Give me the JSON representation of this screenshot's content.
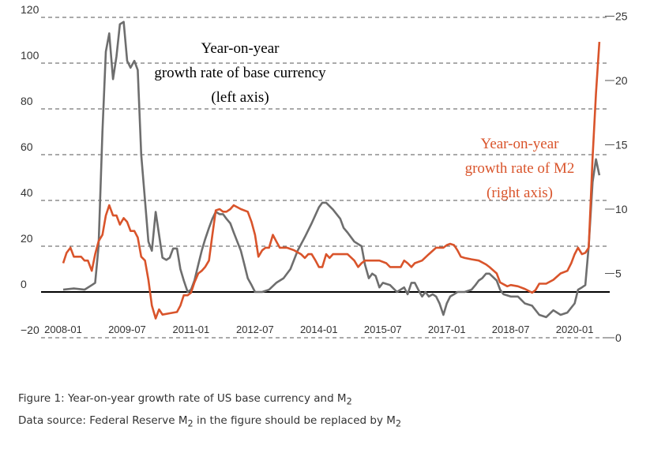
{
  "chart_data": {
    "type": "line",
    "left_axis": {
      "ticks": [
        -20,
        0,
        20,
        40,
        60,
        80,
        100,
        120
      ],
      "labels": [
        "−20",
        "0",
        "20",
        "40",
        "60",
        "80",
        "100",
        "120"
      ],
      "range": [
        -20,
        120
      ]
    },
    "right_axis": {
      "ticks": [
        0,
        5,
        10,
        15,
        20,
        25
      ],
      "labels": [
        "0",
        "5",
        "10",
        "15",
        "20",
        "25"
      ],
      "range": [
        0,
        25
      ]
    },
    "x_ticks": [
      "2008-01",
      "2009-07",
      "2011-01",
      "2012-07",
      "2014-01",
      "2015-07",
      "2017-01",
      "2018-07",
      "2020-01"
    ],
    "x_range": [
      2008.0,
      2020.6
    ],
    "annotations": {
      "base": [
        "Year-on-year",
        "growth rate of base currency",
        "(left axis)"
      ],
      "m2_line1": "Year-on-year",
      "m2_line2": "growth rate of M2",
      "m2_line3": "(right axis)"
    },
    "series": [
      {
        "name": "Year-on-year growth rate of base currency",
        "axis": "left",
        "color": "#6e6e6e",
        "points": [
          [
            2008.0,
            1
          ],
          [
            2008.25,
            1.5
          ],
          [
            2008.5,
            1
          ],
          [
            2008.67,
            3
          ],
          [
            2008.75,
            4
          ],
          [
            2008.83,
            20
          ],
          [
            2008.92,
            70
          ],
          [
            2009.0,
            105
          ],
          [
            2009.08,
            113
          ],
          [
            2009.17,
            93
          ],
          [
            2009.25,
            103
          ],
          [
            2009.33,
            117
          ],
          [
            2009.42,
            118
          ],
          [
            2009.5,
            101
          ],
          [
            2009.58,
            98
          ],
          [
            2009.67,
            101
          ],
          [
            2009.75,
            97
          ],
          [
            2009.83,
            60
          ],
          [
            2009.92,
            40
          ],
          [
            2010.0,
            22
          ],
          [
            2010.08,
            18
          ],
          [
            2010.17,
            35
          ],
          [
            2010.25,
            25
          ],
          [
            2010.33,
            15
          ],
          [
            2010.42,
            14
          ],
          [
            2010.5,
            15
          ],
          [
            2010.58,
            19
          ],
          [
            2010.67,
            19
          ],
          [
            2010.75,
            10
          ],
          [
            2010.83,
            5
          ],
          [
            2010.92,
            0
          ],
          [
            2011.0,
            1
          ],
          [
            2011.08,
            5
          ],
          [
            2011.17,
            12
          ],
          [
            2011.25,
            18
          ],
          [
            2011.33,
            23
          ],
          [
            2011.42,
            28
          ],
          [
            2011.5,
            32
          ],
          [
            2011.58,
            35
          ],
          [
            2011.67,
            34
          ],
          [
            2011.75,
            34
          ],
          [
            2011.83,
            32
          ],
          [
            2011.92,
            30
          ],
          [
            2012.0,
            26
          ],
          [
            2012.17,
            18
          ],
          [
            2012.25,
            12
          ],
          [
            2012.33,
            6
          ],
          [
            2012.42,
            3
          ],
          [
            2012.5,
            0
          ],
          [
            2012.67,
            0
          ],
          [
            2012.83,
            1
          ],
          [
            2013.0,
            4
          ],
          [
            2013.17,
            6
          ],
          [
            2013.33,
            10
          ],
          [
            2013.5,
            18
          ],
          [
            2013.67,
            24
          ],
          [
            2013.83,
            30
          ],
          [
            2014.0,
            37
          ],
          [
            2014.08,
            39
          ],
          [
            2014.17,
            39
          ],
          [
            2014.33,
            36
          ],
          [
            2014.5,
            32
          ],
          [
            2014.58,
            28
          ],
          [
            2014.67,
            26
          ],
          [
            2014.83,
            22
          ],
          [
            2015.0,
            20
          ],
          [
            2015.08,
            12
          ],
          [
            2015.17,
            6
          ],
          [
            2015.25,
            8
          ],
          [
            2015.33,
            7
          ],
          [
            2015.42,
            2
          ],
          [
            2015.5,
            4
          ],
          [
            2015.67,
            3
          ],
          [
            2015.83,
            0
          ],
          [
            2016.0,
            2
          ],
          [
            2016.08,
            -1
          ],
          [
            2016.17,
            4
          ],
          [
            2016.25,
            4
          ],
          [
            2016.33,
            1
          ],
          [
            2016.42,
            -2
          ],
          [
            2016.5,
            0
          ],
          [
            2016.58,
            -2
          ],
          [
            2016.67,
            -1
          ],
          [
            2016.75,
            -2
          ],
          [
            2016.83,
            -5
          ],
          [
            2016.92,
            -10
          ],
          [
            2017.0,
            -5
          ],
          [
            2017.08,
            -2
          ],
          [
            2017.17,
            -1
          ],
          [
            2017.25,
            0
          ],
          [
            2017.42,
            0
          ],
          [
            2017.58,
            1
          ],
          [
            2017.67,
            3
          ],
          [
            2017.75,
            5
          ],
          [
            2017.83,
            6
          ],
          [
            2017.92,
            8
          ],
          [
            2018.0,
            8
          ],
          [
            2018.17,
            5
          ],
          [
            2018.25,
            1
          ],
          [
            2018.33,
            -1
          ],
          [
            2018.5,
            -2
          ],
          [
            2018.67,
            -2
          ],
          [
            2018.83,
            -5
          ],
          [
            2019.0,
            -6
          ],
          [
            2019.17,
            -10
          ],
          [
            2019.33,
            -11
          ],
          [
            2019.5,
            -8
          ],
          [
            2019.67,
            -10
          ],
          [
            2019.83,
            -9
          ],
          [
            2020.0,
            -5
          ],
          [
            2020.08,
            1
          ],
          [
            2020.17,
            2
          ],
          [
            2020.25,
            3
          ],
          [
            2020.33,
            20
          ],
          [
            2020.42,
            48
          ],
          [
            2020.5,
            58
          ],
          [
            2020.58,
            51
          ]
        ]
      },
      {
        "name": "Year-on-year growth rate of M2",
        "axis": "right",
        "color": "#d9542b",
        "points": [
          [
            2008.0,
            5.8
          ],
          [
            2008.08,
            6.6
          ],
          [
            2008.17,
            7
          ],
          [
            2008.25,
            6.3
          ],
          [
            2008.42,
            6.3
          ],
          [
            2008.5,
            6
          ],
          [
            2008.58,
            6
          ],
          [
            2008.67,
            5.2
          ],
          [
            2008.75,
            6.5
          ],
          [
            2008.83,
            7.5
          ],
          [
            2008.92,
            8
          ],
          [
            2009.0,
            9.5
          ],
          [
            2009.08,
            10.3
          ],
          [
            2009.17,
            9.5
          ],
          [
            2009.25,
            9.5
          ],
          [
            2009.33,
            8.8
          ],
          [
            2009.42,
            9.3
          ],
          [
            2009.5,
            9
          ],
          [
            2009.58,
            8.3
          ],
          [
            2009.67,
            8.3
          ],
          [
            2009.75,
            7.8
          ],
          [
            2009.83,
            6.3
          ],
          [
            2009.92,
            6
          ],
          [
            2010.0,
            4.5
          ],
          [
            2010.08,
            2.5
          ],
          [
            2010.17,
            1.5
          ],
          [
            2010.25,
            2.2
          ],
          [
            2010.33,
            1.8
          ],
          [
            2010.5,
            1.9
          ],
          [
            2010.67,
            2
          ],
          [
            2010.75,
            2.5
          ],
          [
            2010.83,
            3.3
          ],
          [
            2010.92,
            3.3
          ],
          [
            2011.0,
            3.5
          ],
          [
            2011.08,
            4.3
          ],
          [
            2011.17,
            5
          ],
          [
            2011.25,
            5.2
          ],
          [
            2011.33,
            5.5
          ],
          [
            2011.42,
            6
          ],
          [
            2011.5,
            8
          ],
          [
            2011.58,
            9.9
          ],
          [
            2011.67,
            10
          ],
          [
            2011.75,
            9.8
          ],
          [
            2011.83,
            9.8
          ],
          [
            2011.92,
            10
          ],
          [
            2012.0,
            10.3
          ],
          [
            2012.17,
            10
          ],
          [
            2012.33,
            9.8
          ],
          [
            2012.42,
            9
          ],
          [
            2012.5,
            8
          ],
          [
            2012.58,
            6.3
          ],
          [
            2012.67,
            6.8
          ],
          [
            2012.75,
            7
          ],
          [
            2012.83,
            7
          ],
          [
            2012.92,
            8
          ],
          [
            2013.0,
            7.5
          ],
          [
            2013.08,
            7
          ],
          [
            2013.25,
            7
          ],
          [
            2013.42,
            6.8
          ],
          [
            2013.58,
            6.5
          ],
          [
            2013.67,
            6.2
          ],
          [
            2013.75,
            6.5
          ],
          [
            2013.83,
            6.5
          ],
          [
            2013.92,
            6
          ],
          [
            2014.0,
            5.5
          ],
          [
            2014.08,
            5.5
          ],
          [
            2014.17,
            6.5
          ],
          [
            2014.25,
            6.2
          ],
          [
            2014.33,
            6.5
          ],
          [
            2014.5,
            6.5
          ],
          [
            2014.67,
            6.5
          ],
          [
            2014.83,
            6
          ],
          [
            2014.92,
            5.5
          ],
          [
            2015.0,
            5.8
          ],
          [
            2015.08,
            6
          ],
          [
            2015.25,
            6
          ],
          [
            2015.42,
            6
          ],
          [
            2015.58,
            5.8
          ],
          [
            2015.67,
            5.5
          ],
          [
            2015.83,
            5.5
          ],
          [
            2015.92,
            5.5
          ],
          [
            2016.0,
            6
          ],
          [
            2016.08,
            5.8
          ],
          [
            2016.17,
            5.5
          ],
          [
            2016.25,
            5.8
          ],
          [
            2016.42,
            6
          ],
          [
            2016.58,
            6.5
          ],
          [
            2016.75,
            7
          ],
          [
            2016.92,
            7
          ],
          [
            2017.0,
            7.2
          ],
          [
            2017.08,
            7.3
          ],
          [
            2017.17,
            7.2
          ],
          [
            2017.25,
            6.8
          ],
          [
            2017.33,
            6.3
          ],
          [
            2017.42,
            6.2
          ],
          [
            2017.58,
            6.1
          ],
          [
            2017.75,
            6
          ],
          [
            2017.92,
            5.7
          ],
          [
            2018.0,
            5.5
          ],
          [
            2018.17,
            5
          ],
          [
            2018.25,
            4.3
          ],
          [
            2018.42,
            4
          ],
          [
            2018.5,
            4.1
          ],
          [
            2018.67,
            4
          ],
          [
            2018.83,
            3.8
          ],
          [
            2019.0,
            3.5
          ],
          [
            2019.08,
            3.7
          ],
          [
            2019.17,
            4.2
          ],
          [
            2019.33,
            4.2
          ],
          [
            2019.5,
            4.5
          ],
          [
            2019.67,
            5
          ],
          [
            2019.83,
            5.2
          ],
          [
            2019.92,
            5.8
          ],
          [
            2020.0,
            6.5
          ],
          [
            2020.08,
            7
          ],
          [
            2020.17,
            6.5
          ],
          [
            2020.25,
            6.6
          ],
          [
            2020.33,
            7
          ],
          [
            2020.42,
            14
          ],
          [
            2020.5,
            19
          ],
          [
            2020.58,
            23
          ]
        ]
      }
    ]
  },
  "caption": {
    "line1_prefix": "Figure 1: Year-on-year growth rate of US base currency and M",
    "line1_sub": "2",
    "line2_prefix": "Data source: Federal Reserve  M",
    "line2_sub1": "2",
    "line2_mid": " in the figure should be replaced by M",
    "line2_sub2": "2"
  },
  "colors": {
    "base": "#6e6e6e",
    "m2": "#d9542b",
    "grid": "#555555",
    "text": "#333333"
  }
}
